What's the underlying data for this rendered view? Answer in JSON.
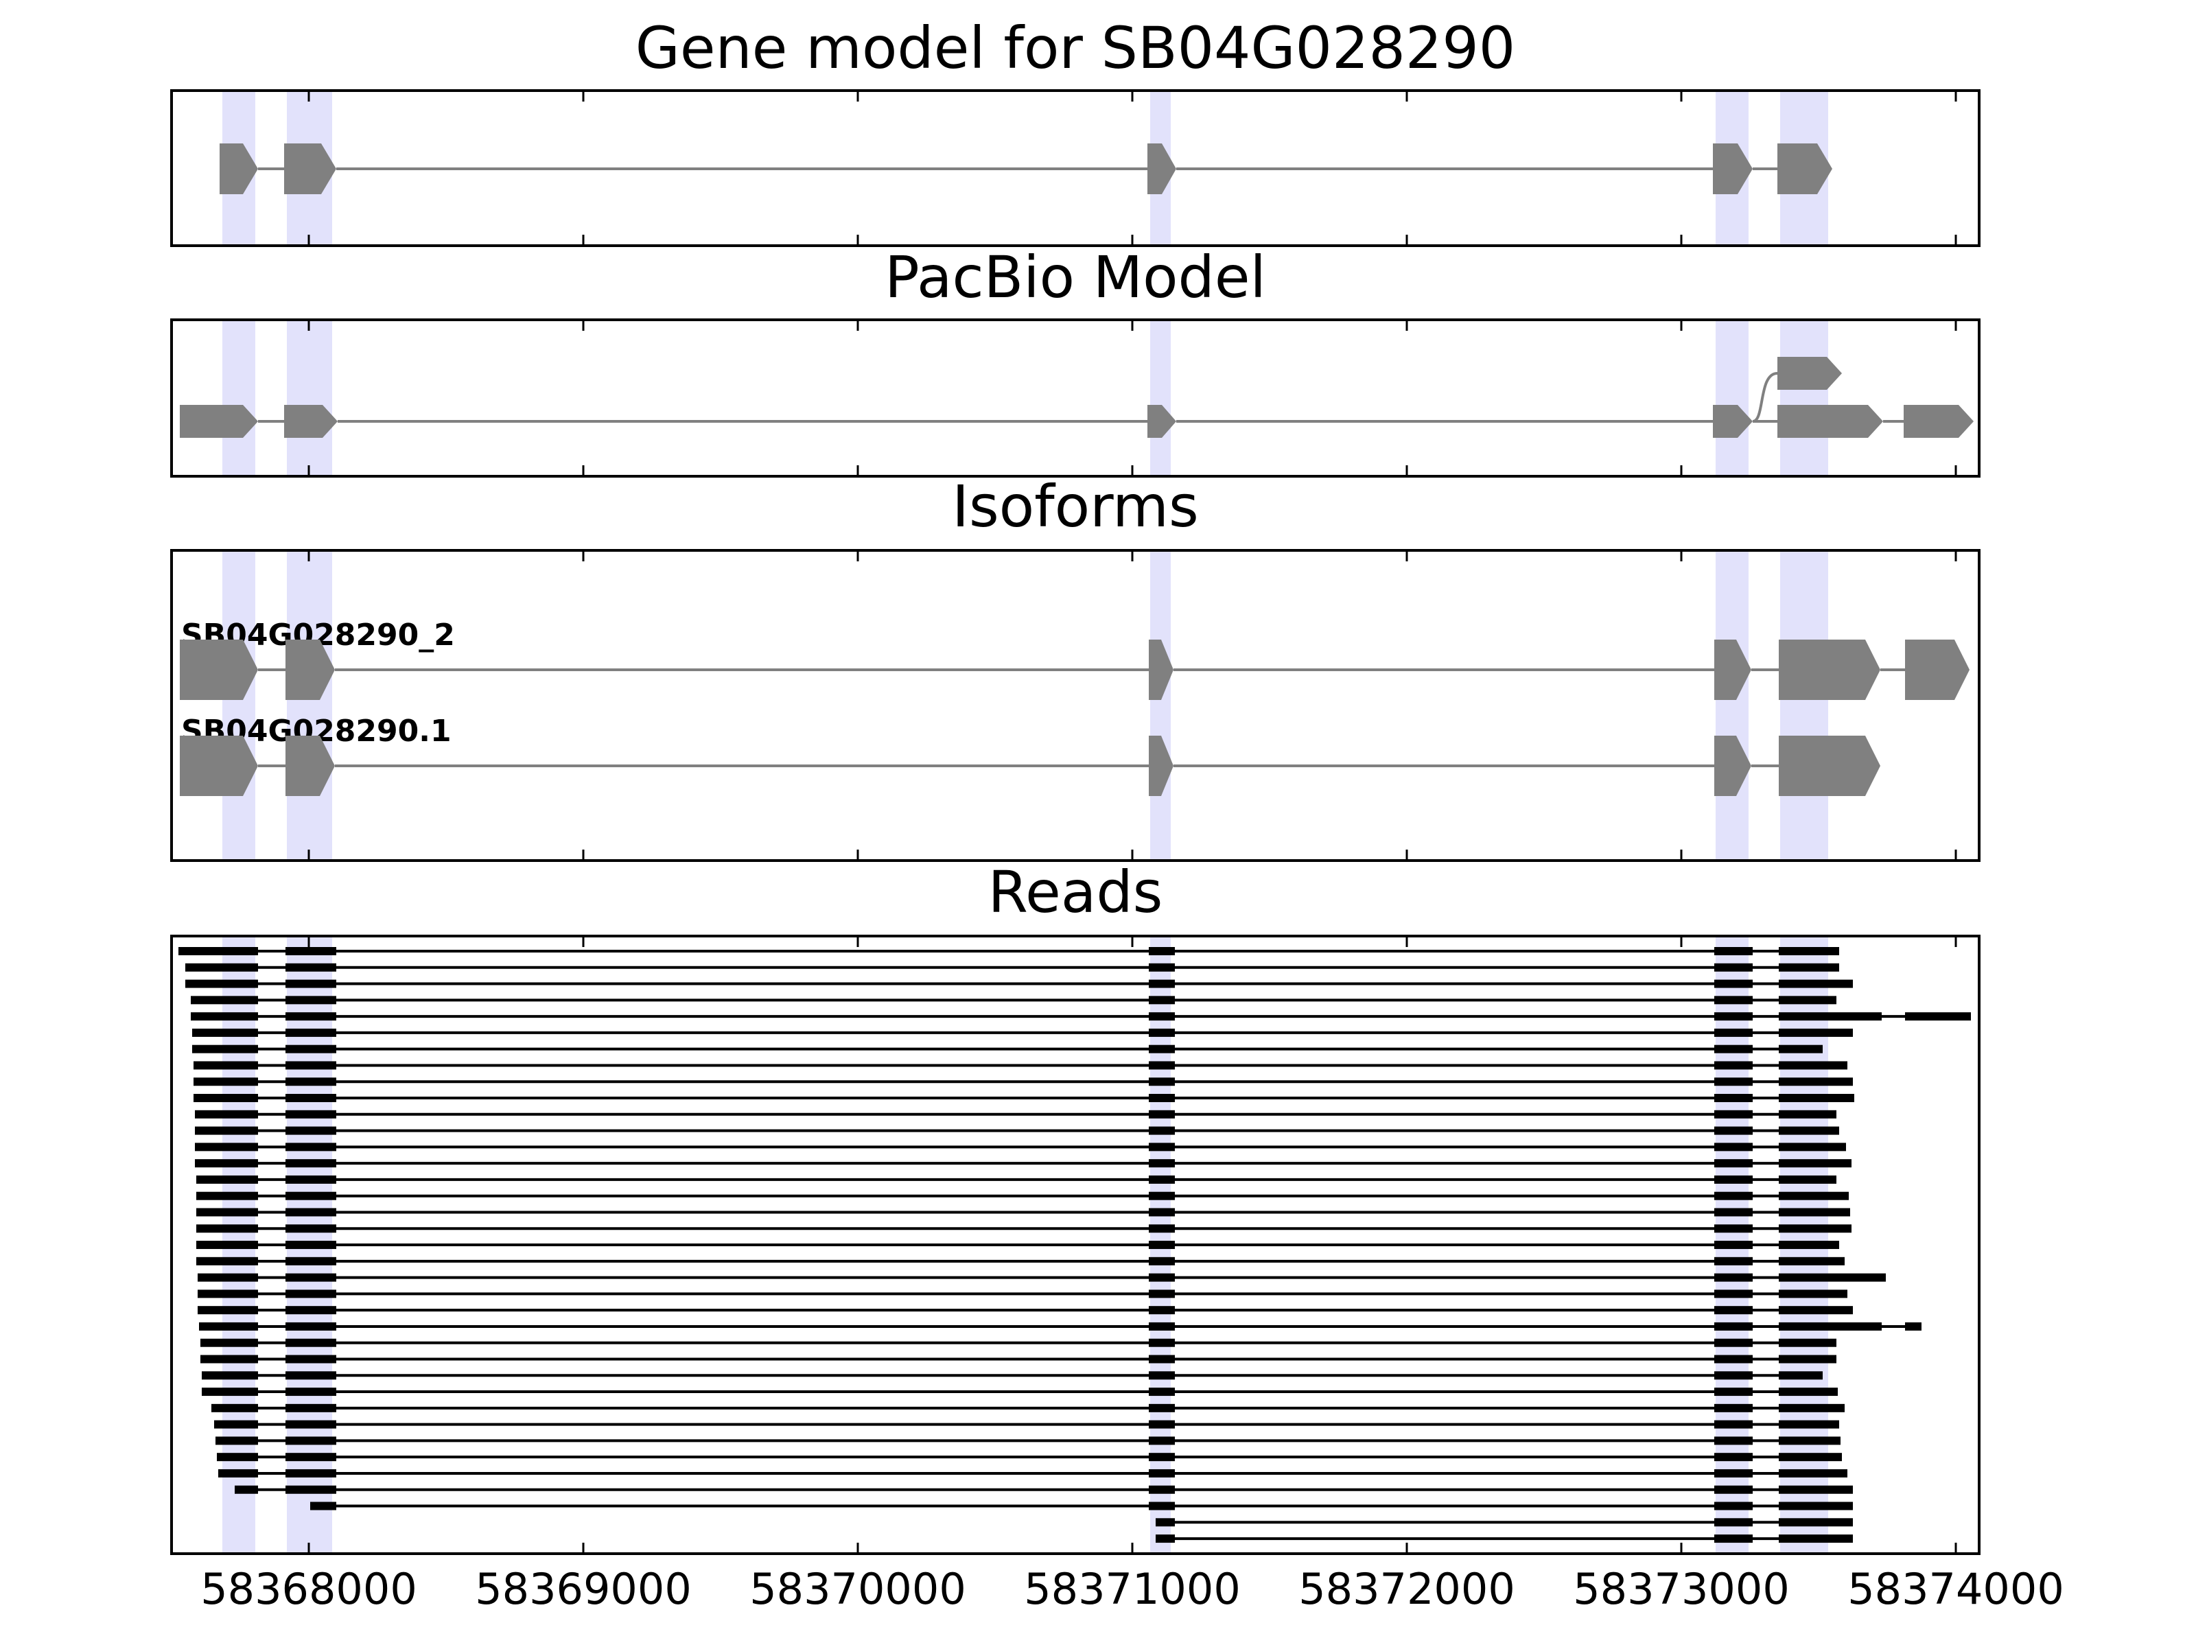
{
  "chart_data": [
    {
      "type": "gene-track",
      "title": "Gene model for SB04G028290",
      "xlim": [
        58367500,
        58374085
      ],
      "xticks": [
        58368000,
        58369000,
        58370000,
        58371000,
        58372000,
        58373000,
        58374000
      ],
      "show_tick_labels": false,
      "highlights": [
        [
          58367685,
          58367805
        ],
        [
          58367920,
          58368085
        ],
        [
          58371065,
          58371140
        ],
        [
          58373125,
          58373245
        ],
        [
          58373360,
          58373535
        ]
      ],
      "color": "#808080",
      "transcripts": [
        {
          "exons": [
            [
              58367675,
              58367815
            ],
            [
              58367910,
              58368100
            ],
            [
              58371055,
              58371160
            ],
            [
              58373115,
              58373260
            ],
            [
              58373350,
              58373550
            ]
          ]
        }
      ]
    },
    {
      "type": "gene-track",
      "title": "PacBio Model",
      "xlim": [
        58367500,
        58374085
      ],
      "xticks": [
        58368000,
        58369000,
        58370000,
        58371000,
        58372000,
        58373000,
        58374000
      ],
      "show_tick_labels": false,
      "highlights": [
        [
          58367685,
          58367805
        ],
        [
          58367920,
          58368085
        ],
        [
          58371065,
          58371140
        ],
        [
          58373125,
          58373245
        ],
        [
          58373360,
          58373535
        ]
      ],
      "color": "#808080",
      "transcripts": [
        {
          "exons": [
            [
              58367530,
              58367815
            ],
            [
              58367910,
              58368105
            ],
            [
              58371055,
              58371160
            ],
            [
              58373115,
              58373260
            ],
            [
              58373350,
              58373735
            ],
            [
              58373810,
              58374065
            ]
          ]
        },
        {
          "exons": [
            [
              58373350,
              58373585
            ]
          ],
          "alternative": true
        }
      ]
    },
    {
      "type": "gene-track",
      "title": "Isoforms",
      "xlim": [
        58367500,
        58374085
      ],
      "xticks": [
        58368000,
        58369000,
        58370000,
        58371000,
        58372000,
        58373000,
        58374000
      ],
      "show_tick_labels": false,
      "highlights": [
        [
          58367685,
          58367805
        ],
        [
          58367920,
          58368085
        ],
        [
          58371065,
          58371140
        ],
        [
          58373125,
          58373245
        ],
        [
          58373360,
          58373535
        ]
      ],
      "color": "#808080",
      "transcripts": [
        {
          "name": "SB04G028290_2",
          "exons": [
            [
              58367530,
              58367815
            ],
            [
              58367915,
              58368095
            ],
            [
              58371060,
              58371150
            ],
            [
              58373120,
              58373255
            ],
            [
              58373355,
              58373725
            ],
            [
              58373815,
              58374050
            ]
          ]
        },
        {
          "name": "SB04G028290.1",
          "exons": [
            [
              58367530,
              58367815
            ],
            [
              58367915,
              58368095
            ],
            [
              58371060,
              58371150
            ],
            [
              58373120,
              58373255
            ],
            [
              58373355,
              58373725
            ]
          ]
        }
      ]
    },
    {
      "type": "reads",
      "title": "Reads",
      "xlim": [
        58367500,
        58374085
      ],
      "xticks": [
        58368000,
        58369000,
        58370000,
        58371000,
        58372000,
        58373000,
        58374000
      ],
      "show_tick_labels": true,
      "highlights": [
        [
          58367685,
          58367805
        ],
        [
          58367920,
          58368085
        ],
        [
          58371065,
          58371140
        ],
        [
          58373125,
          58373245
        ],
        [
          58373360,
          58373535
        ]
      ],
      "color": "#000000",
      "reads": [
        [
          [
            58367525,
            58367815
          ],
          [
            58367915,
            58368100
          ],
          [
            58371060,
            58371155
          ],
          [
            58373120,
            58373260
          ],
          [
            58373355,
            58373575
          ]
        ],
        [
          [
            58367550,
            58367815
          ],
          [
            58367915,
            58368100
          ],
          [
            58371060,
            58371155
          ],
          [
            58373120,
            58373260
          ],
          [
            58373355,
            58373575
          ]
        ],
        [
          [
            58367550,
            58367815
          ],
          [
            58367915,
            58368100
          ],
          [
            58371060,
            58371155
          ],
          [
            58373120,
            58373260
          ],
          [
            58373355,
            58373625
          ]
        ],
        [
          [
            58367570,
            58367815
          ],
          [
            58367915,
            58368100
          ],
          [
            58371060,
            58371155
          ],
          [
            58373120,
            58373260
          ],
          [
            58373355,
            58373565
          ]
        ],
        [
          [
            58367570,
            58367815
          ],
          [
            58367915,
            58368100
          ],
          [
            58371060,
            58371155
          ],
          [
            58373120,
            58373260
          ],
          [
            58373355,
            58373730
          ],
          [
            58373815,
            58374055
          ]
        ],
        [
          [
            58367575,
            58367815
          ],
          [
            58367915,
            58368100
          ],
          [
            58371060,
            58371155
          ],
          [
            58373120,
            58373260
          ],
          [
            58373355,
            58373625
          ]
        ],
        [
          [
            58367575,
            58367815
          ],
          [
            58367915,
            58368100
          ],
          [
            58371060,
            58371155
          ],
          [
            58373120,
            58373260
          ],
          [
            58373355,
            58373515
          ]
        ],
        [
          [
            58367580,
            58367815
          ],
          [
            58367915,
            58368100
          ],
          [
            58371060,
            58371155
          ],
          [
            58373120,
            58373260
          ],
          [
            58373355,
            58373605
          ]
        ],
        [
          [
            58367580,
            58367815
          ],
          [
            58367915,
            58368100
          ],
          [
            58371060,
            58371155
          ],
          [
            58373120,
            58373260
          ],
          [
            58373355,
            58373625
          ]
        ],
        [
          [
            58367580,
            58367815
          ],
          [
            58367915,
            58368100
          ],
          [
            58371060,
            58371155
          ],
          [
            58373120,
            58373260
          ],
          [
            58373355,
            58373630
          ]
        ],
        [
          [
            58367585,
            58367815
          ],
          [
            58367915,
            58368100
          ],
          [
            58371060,
            58371155
          ],
          [
            58373120,
            58373260
          ],
          [
            58373355,
            58373565
          ]
        ],
        [
          [
            58367585,
            58367815
          ],
          [
            58367915,
            58368100
          ],
          [
            58371060,
            58371155
          ],
          [
            58373120,
            58373260
          ],
          [
            58373355,
            58373575
          ]
        ],
        [
          [
            58367585,
            58367815
          ],
          [
            58367915,
            58368100
          ],
          [
            58371060,
            58371155
          ],
          [
            58373120,
            58373260
          ],
          [
            58373355,
            58373600
          ]
        ],
        [
          [
            58367585,
            58367815
          ],
          [
            58367915,
            58368100
          ],
          [
            58371060,
            58371155
          ],
          [
            58373120,
            58373260
          ],
          [
            58373355,
            58373620
          ]
        ],
        [
          [
            58367590,
            58367815
          ],
          [
            58367915,
            58368100
          ],
          [
            58371060,
            58371155
          ],
          [
            58373120,
            58373260
          ],
          [
            58373355,
            58373565
          ]
        ],
        [
          [
            58367590,
            58367815
          ],
          [
            58367915,
            58368100
          ],
          [
            58371060,
            58371155
          ],
          [
            58373120,
            58373260
          ],
          [
            58373355,
            58373610
          ]
        ],
        [
          [
            58367590,
            58367815
          ],
          [
            58367915,
            58368100
          ],
          [
            58371060,
            58371155
          ],
          [
            58373120,
            58373260
          ],
          [
            58373355,
            58373615
          ]
        ],
        [
          [
            58367590,
            58367815
          ],
          [
            58367915,
            58368100
          ],
          [
            58371060,
            58371155
          ],
          [
            58373120,
            58373260
          ],
          [
            58373355,
            58373620
          ]
        ],
        [
          [
            58367590,
            58367815
          ],
          [
            58367915,
            58368100
          ],
          [
            58371060,
            58371155
          ],
          [
            58373120,
            58373260
          ],
          [
            58373355,
            58373575
          ]
        ],
        [
          [
            58367590,
            58367815
          ],
          [
            58367915,
            58368100
          ],
          [
            58371060,
            58371155
          ],
          [
            58373120,
            58373260
          ],
          [
            58373355,
            58373595
          ]
        ],
        [
          [
            58367595,
            58367815
          ],
          [
            58367915,
            58368100
          ],
          [
            58371060,
            58371155
          ],
          [
            58373120,
            58373260
          ],
          [
            58373355,
            58373745
          ]
        ],
        [
          [
            58367595,
            58367815
          ],
          [
            58367915,
            58368100
          ],
          [
            58371060,
            58371155
          ],
          [
            58373120,
            58373260
          ],
          [
            58373355,
            58373605
          ]
        ],
        [
          [
            58367595,
            58367815
          ],
          [
            58367915,
            58368100
          ],
          [
            58371060,
            58371155
          ],
          [
            58373120,
            58373260
          ],
          [
            58373355,
            58373625
          ]
        ],
        [
          [
            58367600,
            58367815
          ],
          [
            58367915,
            58368100
          ],
          [
            58371060,
            58371155
          ],
          [
            58373120,
            58373260
          ],
          [
            58373355,
            58373730
          ],
          [
            58373815,
            58373875
          ]
        ],
        [
          [
            58367605,
            58367815
          ],
          [
            58367915,
            58368100
          ],
          [
            58371060,
            58371155
          ],
          [
            58373120,
            58373260
          ],
          [
            58373355,
            58373565
          ]
        ],
        [
          [
            58367605,
            58367815
          ],
          [
            58367915,
            58368100
          ],
          [
            58371060,
            58371155
          ],
          [
            58373120,
            58373260
          ],
          [
            58373355,
            58373565
          ]
        ],
        [
          [
            58367610,
            58367815
          ],
          [
            58367915,
            58368100
          ],
          [
            58371060,
            58371155
          ],
          [
            58373120,
            58373260
          ],
          [
            58373355,
            58373515
          ]
        ],
        [
          [
            58367610,
            58367815
          ],
          [
            58367915,
            58368100
          ],
          [
            58371060,
            58371155
          ],
          [
            58373120,
            58373260
          ],
          [
            58373355,
            58373570
          ]
        ],
        [
          [
            58367645,
            58367815
          ],
          [
            58367915,
            58368100
          ],
          [
            58371060,
            58371155
          ],
          [
            58373120,
            58373260
          ],
          [
            58373355,
            58373595
          ]
        ],
        [
          [
            58367655,
            58367815
          ],
          [
            58367915,
            58368100
          ],
          [
            58371060,
            58371155
          ],
          [
            58373120,
            58373260
          ],
          [
            58373355,
            58373575
          ]
        ],
        [
          [
            58367660,
            58367815
          ],
          [
            58367915,
            58368100
          ],
          [
            58371060,
            58371155
          ],
          [
            58373120,
            58373260
          ],
          [
            58373355,
            58373580
          ]
        ],
        [
          [
            58367665,
            58367815
          ],
          [
            58367915,
            58368100
          ],
          [
            58371060,
            58371155
          ],
          [
            58373120,
            58373260
          ],
          [
            58373355,
            58373585
          ]
        ],
        [
          [
            58367670,
            58367815
          ],
          [
            58367915,
            58368100
          ],
          [
            58371060,
            58371155
          ],
          [
            58373120,
            58373260
          ],
          [
            58373355,
            58373605
          ]
        ],
        [
          [
            58367730,
            58367815
          ],
          [
            58367915,
            58368100
          ],
          [
            58371060,
            58371155
          ],
          [
            58373120,
            58373260
          ],
          [
            58373355,
            58373625
          ]
        ],
        [
          [
            58368005,
            58368100
          ],
          [
            58371060,
            58371155
          ],
          [
            58373120,
            58373260
          ],
          [
            58373355,
            58373625
          ]
        ],
        [
          [
            58371085,
            58371155
          ],
          [
            58373120,
            58373260
          ],
          [
            58373355,
            58373625
          ]
        ],
        [
          [
            58371085,
            58371155
          ],
          [
            58373120,
            58373260
          ],
          [
            58373355,
            58373625
          ]
        ]
      ]
    }
  ]
}
